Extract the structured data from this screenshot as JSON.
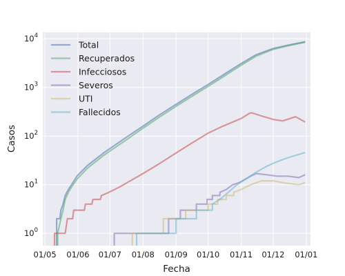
{
  "chart_data": {
    "type": "line",
    "xlabel": "Fecha",
    "ylabel": "Casos",
    "x_scale": "date",
    "y_scale": "log",
    "xlim": [
      "2020-04-29",
      "2021-01-05"
    ],
    "ylim": [
      0.56,
      13500
    ],
    "grid": true,
    "legend_position": "top-left",
    "x_ticks": [
      {
        "date": "2020-05-01",
        "label": "01/05"
      },
      {
        "date": "2020-06-01",
        "label": "01/06"
      },
      {
        "date": "2020-07-01",
        "label": "01/07"
      },
      {
        "date": "2020-08-01",
        "label": "01/08"
      },
      {
        "date": "2020-09-01",
        "label": "01/09"
      },
      {
        "date": "2020-10-01",
        "label": "01/10"
      },
      {
        "date": "2020-11-01",
        "label": "01/11"
      },
      {
        "date": "2020-12-01",
        "label": "01/12"
      },
      {
        "date": "2021-01-01",
        "label": "01/01"
      }
    ],
    "y_ticks": [
      {
        "value": 1,
        "mantissa": "10",
        "exponent": "0"
      },
      {
        "value": 10,
        "mantissa": "10",
        "exponent": "1"
      },
      {
        "value": 100,
        "mantissa": "10",
        "exponent": "2"
      },
      {
        "value": 1000,
        "mantissa": "10",
        "exponent": "3"
      },
      {
        "value": 10000,
        "mantissa": "10",
        "exponent": "4"
      }
    ],
    "series": [
      {
        "name": "Total",
        "color": "#4c72b0",
        "points": [
          [
            "2020-05-12",
            0.3
          ],
          [
            "2020-05-12",
            2
          ],
          [
            "2020-05-15",
            2
          ],
          [
            "2020-05-16",
            3
          ],
          [
            "2020-05-18",
            4
          ],
          [
            "2020-05-20",
            6
          ],
          [
            "2020-05-23",
            8
          ],
          [
            "2020-05-26",
            10
          ],
          [
            "2020-05-31",
            15
          ],
          [
            "2020-06-10",
            25
          ],
          [
            "2020-06-25",
            45
          ],
          [
            "2020-07-15",
            90
          ],
          [
            "2020-08-01",
            160
          ],
          [
            "2020-08-15",
            260
          ],
          [
            "2020-09-01",
            450
          ],
          [
            "2020-09-15",
            700
          ],
          [
            "2020-10-01",
            1150
          ],
          [
            "2020-10-15",
            1800
          ],
          [
            "2020-11-01",
            3100
          ],
          [
            "2020-11-15",
            4700
          ],
          [
            "2020-12-01",
            6300
          ],
          [
            "2020-12-15",
            7400
          ],
          [
            "2020-12-31",
            8700
          ]
        ]
      },
      {
        "name": "Recuperados",
        "color": "#55a868",
        "points": [
          [
            "2020-05-13",
            0.3
          ],
          [
            "2020-05-13",
            1
          ],
          [
            "2020-05-16",
            2
          ],
          [
            "2020-05-18",
            3
          ],
          [
            "2020-05-20",
            5
          ],
          [
            "2020-05-23",
            7
          ],
          [
            "2020-05-26",
            9
          ],
          [
            "2020-05-31",
            13
          ],
          [
            "2020-06-10",
            22
          ],
          [
            "2020-06-25",
            40
          ],
          [
            "2020-07-15",
            80
          ],
          [
            "2020-08-01",
            145
          ],
          [
            "2020-08-15",
            235
          ],
          [
            "2020-09-01",
            410
          ],
          [
            "2020-09-15",
            640
          ],
          [
            "2020-10-01",
            1050
          ],
          [
            "2020-10-15",
            1650
          ],
          [
            "2020-11-01",
            2850
          ],
          [
            "2020-11-15",
            4400
          ],
          [
            "2020-12-01",
            6050
          ],
          [
            "2020-12-15",
            7200
          ],
          [
            "2020-12-31",
            8500
          ]
        ]
      },
      {
        "name": "Infecciosos",
        "color": "#c44e52",
        "points": [
          [
            "2020-05-10",
            0.3
          ],
          [
            "2020-05-10",
            1
          ],
          [
            "2020-05-20",
            1
          ],
          [
            "2020-05-22",
            2
          ],
          [
            "2020-05-27",
            2
          ],
          [
            "2020-05-28",
            3
          ],
          [
            "2020-06-07",
            3
          ],
          [
            "2020-06-08",
            4
          ],
          [
            "2020-06-14",
            4
          ],
          [
            "2020-06-15",
            5
          ],
          [
            "2020-06-22",
            5
          ],
          [
            "2020-06-23",
            6
          ],
          [
            "2020-06-30",
            7
          ],
          [
            "2020-07-10",
            9
          ],
          [
            "2020-07-20",
            12
          ],
          [
            "2020-08-01",
            17
          ],
          [
            "2020-08-15",
            26
          ],
          [
            "2020-09-01",
            45
          ],
          [
            "2020-09-15",
            70
          ],
          [
            "2020-10-01",
            115
          ],
          [
            "2020-10-15",
            160
          ],
          [
            "2020-11-01",
            230
          ],
          [
            "2020-11-09",
            295
          ],
          [
            "2020-11-11",
            300
          ],
          [
            "2020-11-20",
            260
          ],
          [
            "2020-12-01",
            220
          ],
          [
            "2020-12-10",
            205
          ],
          [
            "2020-12-22",
            250
          ],
          [
            "2020-12-31",
            195
          ]
        ]
      },
      {
        "name": "Severos",
        "color": "#8172b2",
        "points": [
          [
            "2020-07-05",
            0.3
          ],
          [
            "2020-07-05",
            1
          ],
          [
            "2020-08-25",
            1
          ],
          [
            "2020-08-25",
            2
          ],
          [
            "2020-09-05",
            2
          ],
          [
            "2020-09-05",
            3
          ],
          [
            "2020-09-20",
            3
          ],
          [
            "2020-09-20",
            4
          ],
          [
            "2020-09-30",
            4
          ],
          [
            "2020-09-30",
            5
          ],
          [
            "2020-10-05",
            5
          ],
          [
            "2020-10-05",
            6
          ],
          [
            "2020-10-12",
            6
          ],
          [
            "2020-10-12",
            7
          ],
          [
            "2020-10-18",
            8
          ],
          [
            "2020-10-24",
            10
          ],
          [
            "2020-10-30",
            11
          ],
          [
            "2020-11-05",
            13
          ],
          [
            "2020-11-10",
            15
          ],
          [
            "2020-11-15",
            17
          ],
          [
            "2020-11-25",
            16
          ],
          [
            "2020-12-05",
            15
          ],
          [
            "2020-12-15",
            15
          ],
          [
            "2020-12-25",
            14
          ],
          [
            "2020-12-31",
            16
          ]
        ]
      },
      {
        "name": "UTI",
        "color": "#ccb974",
        "points": [
          [
            "2020-07-22",
            0.3
          ],
          [
            "2020-07-22",
            1
          ],
          [
            "2020-08-20",
            1
          ],
          [
            "2020-08-20",
            2
          ],
          [
            "2020-09-10",
            2
          ],
          [
            "2020-09-10",
            3
          ],
          [
            "2020-10-01",
            3
          ],
          [
            "2020-10-01",
            4
          ],
          [
            "2020-10-10",
            4
          ],
          [
            "2020-10-10",
            5
          ],
          [
            "2020-10-18",
            5
          ],
          [
            "2020-10-18",
            6
          ],
          [
            "2020-10-25",
            6
          ],
          [
            "2020-10-25",
            7
          ],
          [
            "2020-11-01",
            8
          ],
          [
            "2020-11-10",
            10
          ],
          [
            "2020-11-20",
            12
          ],
          [
            "2020-12-01",
            12
          ],
          [
            "2020-12-10",
            11
          ],
          [
            "2020-12-25",
            10
          ],
          [
            "2020-12-31",
            11
          ]
        ]
      },
      {
        "name": "Fallecidos",
        "color": "#64b5cd",
        "points": [
          [
            "2020-07-26",
            0.3
          ],
          [
            "2020-07-26",
            1
          ],
          [
            "2020-09-01",
            1
          ],
          [
            "2020-09-01",
            2
          ],
          [
            "2020-09-20",
            2
          ],
          [
            "2020-09-20",
            3
          ],
          [
            "2020-10-05",
            3
          ],
          [
            "2020-10-05",
            4
          ],
          [
            "2020-10-12",
            5
          ],
          [
            "2020-10-20",
            7
          ],
          [
            "2020-10-28",
            10
          ],
          [
            "2020-11-05",
            13
          ],
          [
            "2020-11-15",
            18
          ],
          [
            "2020-11-25",
            24
          ],
          [
            "2020-12-05",
            30
          ],
          [
            "2020-12-15",
            36
          ],
          [
            "2020-12-25",
            42
          ],
          [
            "2020-12-31",
            46
          ]
        ]
      }
    ]
  }
}
